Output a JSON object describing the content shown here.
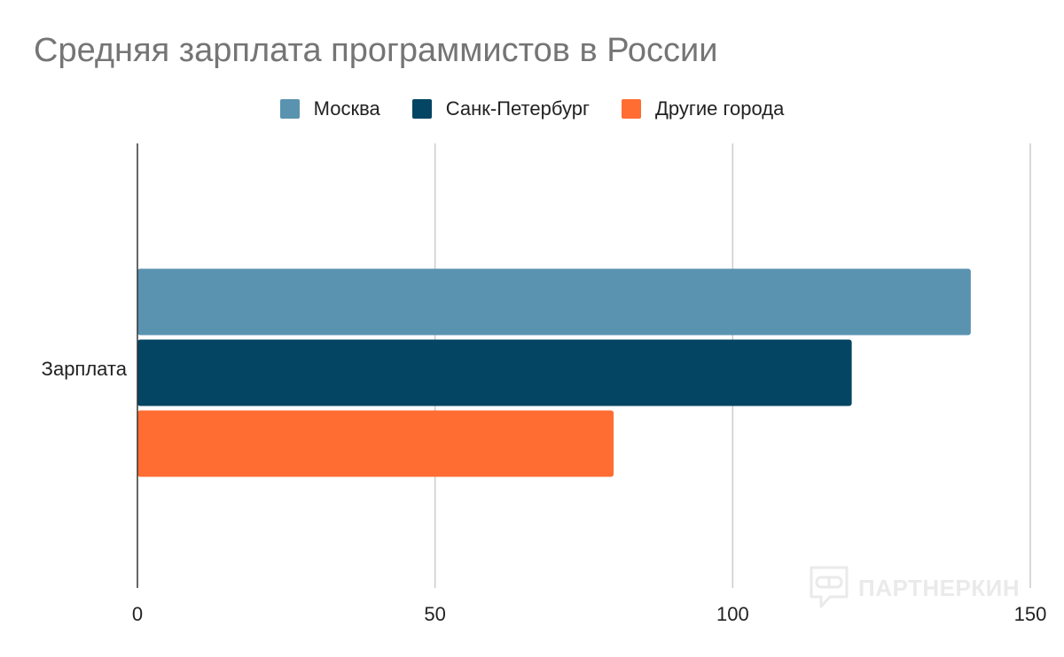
{
  "chart_data": {
    "type": "bar",
    "orientation": "horizontal",
    "title": "Средняя зарплата программистов в России",
    "categories": [
      "Зарплата"
    ],
    "series": [
      {
        "name": "Москва",
        "values": [
          140
        ],
        "color": "#5a93b0"
      },
      {
        "name": "Санк-Петербург",
        "values": [
          120
        ],
        "color": "#034563"
      },
      {
        "name": "Другие города",
        "values": [
          80
        ],
        "color": "#ff6d33"
      }
    ],
    "xlim": [
      0,
      150
    ],
    "xticks": [
      0,
      50,
      100,
      150
    ],
    "grid": true,
    "legend": "top"
  },
  "watermark": {
    "text": "ПАРТНЕРКИН",
    "icon": "chat-bubble-mask-icon"
  }
}
